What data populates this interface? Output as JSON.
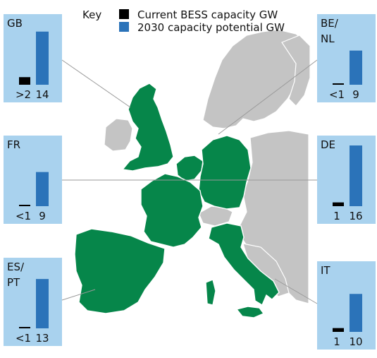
{
  "key": {
    "title": "Key",
    "current_label": "Current BESS capacity GW",
    "potential_label": "2030 capacity potential GW"
  },
  "colors": {
    "current": "#000000",
    "potential": "#2b73b9",
    "panel": "#a9d2ee",
    "focus_land": "#06864a",
    "other_land": "#c4c4c4",
    "leader": "#9a9a9a"
  },
  "chart_data": {
    "type": "bar",
    "title": "",
    "series_names": [
      "Current BESS capacity GW",
      "2030 capacity potential GW"
    ],
    "y_scale_max": 16,
    "panels": [
      {
        "region": "GB",
        "current": 2,
        "current_label": ">2",
        "potential": 14,
        "potential_label": "14"
      },
      {
        "region": "BE/NL",
        "current": 0.3,
        "current_label": "<1",
        "potential": 9,
        "potential_label": "9"
      },
      {
        "region": "FR",
        "current": 0.3,
        "current_label": "<1",
        "potential": 9,
        "potential_label": "9"
      },
      {
        "region": "DE",
        "current": 1,
        "current_label": "1",
        "potential": 16,
        "potential_label": "16"
      },
      {
        "region": "ES/PT",
        "current": 0.3,
        "current_label": "<1",
        "potential": 13,
        "potential_label": "13"
      },
      {
        "region": "IT",
        "current": 1,
        "current_label": "1",
        "potential": 10,
        "potential_label": "10"
      }
    ]
  }
}
